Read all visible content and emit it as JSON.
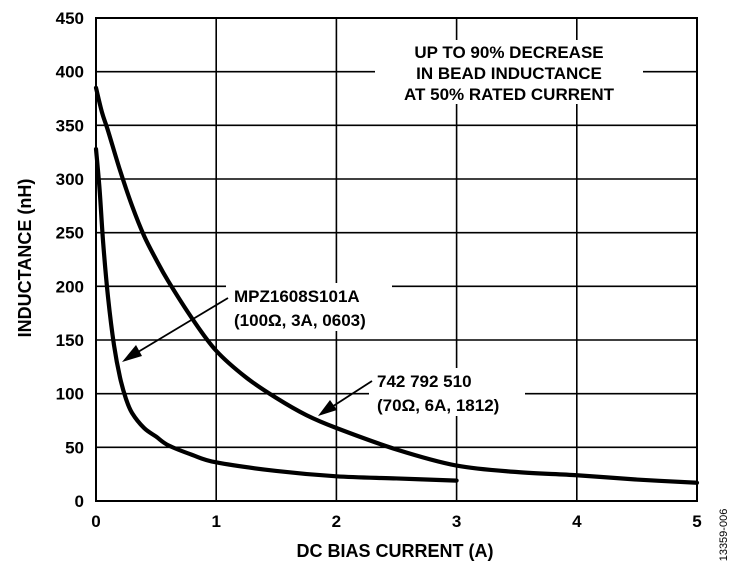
{
  "chart_data": {
    "type": "line",
    "xlabel": "DC BIAS CURRENT (A)",
    "ylabel": "INDUCTANCE (nH)",
    "xlim": [
      0,
      5
    ],
    "ylim": [
      0,
      450
    ],
    "x_ticks": [
      "0",
      "1",
      "2",
      "3",
      "4",
      "5"
    ],
    "y_ticks": [
      "0",
      "50",
      "100",
      "150",
      "200",
      "250",
      "300",
      "350",
      "400",
      "450"
    ],
    "grid": true,
    "figure_id": "13359-006",
    "annotation_lines": [
      "UP TO 90% DECREASE",
      "IN BEAD INDUCTANCE",
      "AT 50% RATED CURRENT"
    ],
    "series": [
      {
        "name": "MPZ1608S101A",
        "spec": "(100Ω, 3A, 0603)",
        "x": [
          0,
          0.03,
          0.06,
          0.1,
          0.15,
          0.2,
          0.25,
          0.3,
          0.4,
          0.5,
          0.6,
          0.8,
          1.0,
          1.5,
          2.0,
          2.5,
          3.0
        ],
        "y": [
          328,
          290,
          240,
          190,
          145,
          115,
          95,
          82,
          68,
          60,
          52,
          43,
          36,
          28,
          23,
          21,
          19
        ]
      },
      {
        "name": "742 792 510",
        "spec": "(70Ω, 6A, 1812)",
        "x": [
          0,
          0.05,
          0.1,
          0.2,
          0.3,
          0.4,
          0.5,
          0.6,
          0.8,
          1.0,
          1.25,
          1.5,
          1.75,
          2.0,
          2.5,
          3.0,
          3.5,
          4.0,
          4.5,
          5.0
        ],
        "y": [
          385,
          362,
          345,
          308,
          275,
          247,
          225,
          205,
          170,
          140,
          115,
          96,
          80,
          68,
          48,
          33,
          27,
          24,
          20,
          17
        ]
      }
    ]
  }
}
